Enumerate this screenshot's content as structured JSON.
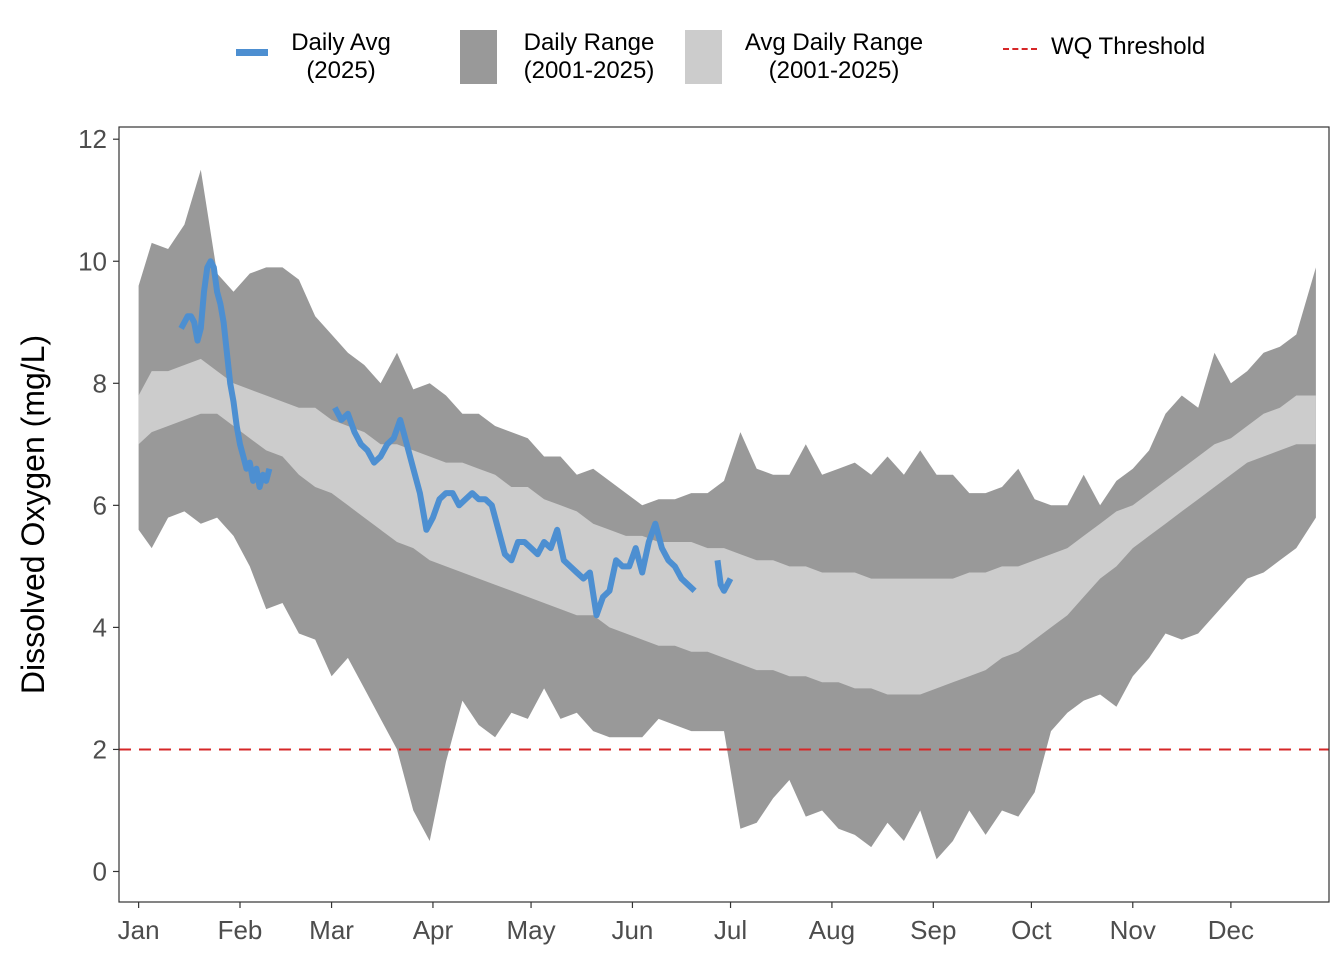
{
  "chart_data": {
    "type": "area",
    "title": "",
    "xlabel": "",
    "ylabel": "Dissolved Oxygen (mg/L)",
    "ylim": [
      -0.5,
      12.2
    ],
    "yticks": [
      0,
      2,
      4,
      6,
      8,
      10,
      12
    ],
    "xlim": [
      -5,
      365
    ],
    "x_unit": "day of year",
    "month_ticks": [
      {
        "label": "Jan",
        "day": 1
      },
      {
        "label": "Feb",
        "day": 32
      },
      {
        "label": "Mar",
        "day": 60
      },
      {
        "label": "Apr",
        "day": 91
      },
      {
        "label": "May",
        "day": 121
      },
      {
        "label": "Jun",
        "day": 152
      },
      {
        "label": "Jul",
        "day": 182
      },
      {
        "label": "Aug",
        "day": 213
      },
      {
        "label": "Sep",
        "day": 244
      },
      {
        "label": "Oct",
        "day": 274
      },
      {
        "label": "Nov",
        "day": 305
      },
      {
        "label": "Dec",
        "day": 335
      }
    ],
    "threshold": {
      "name": "WQ Threshold",
      "value": 2,
      "color": "#d62728"
    },
    "legend": {
      "placement": "top",
      "items": [
        {
          "key": "avg",
          "label": "Daily Avg\n(2025)",
          "color": "#4d8fd1"
        },
        {
          "key": "range",
          "label": "Daily Range\n(2001-2025)",
          "color": "#999999"
        },
        {
          "key": "avgrange",
          "label": "Avg Daily Range\n(2001-2025)",
          "color": "#cccccc"
        },
        {
          "key": "threshold",
          "label": "WQ Threshold",
          "color": "#d62728"
        }
      ]
    },
    "series": [
      {
        "name": "Daily Range (2001-2025)",
        "kind": "band",
        "color": "#999999",
        "x": [
          1,
          5,
          10,
          15,
          20,
          25,
          30,
          35,
          40,
          45,
          50,
          55,
          60,
          65,
          70,
          75,
          80,
          85,
          90,
          95,
          100,
          105,
          110,
          115,
          120,
          125,
          130,
          135,
          140,
          145,
          150,
          155,
          160,
          165,
          170,
          175,
          180,
          185,
          190,
          195,
          200,
          205,
          210,
          215,
          220,
          225,
          230,
          235,
          240,
          245,
          250,
          255,
          260,
          265,
          270,
          275,
          280,
          285,
          290,
          295,
          300,
          305,
          310,
          315,
          320,
          325,
          330,
          335,
          340,
          345,
          350,
          355,
          361
        ],
        "low": [
          5.6,
          5.3,
          5.8,
          5.9,
          5.7,
          5.8,
          5.5,
          5.0,
          4.3,
          4.4,
          3.9,
          3.8,
          3.2,
          3.5,
          3.0,
          2.5,
          2.0,
          1.0,
          0.5,
          1.8,
          2.8,
          2.4,
          2.2,
          2.6,
          2.5,
          3.0,
          2.5,
          2.6,
          2.3,
          2.2,
          2.2,
          2.2,
          2.5,
          2.4,
          2.3,
          2.3,
          2.3,
          0.7,
          0.8,
          1.2,
          1.5,
          0.9,
          1.0,
          0.7,
          0.6,
          0.4,
          0.8,
          0.5,
          1.0,
          0.2,
          0.5,
          1.0,
          0.6,
          1.0,
          0.9,
          1.3,
          2.3,
          2.6,
          2.8,
          2.9,
          2.7,
          3.2,
          3.5,
          3.9,
          3.8,
          3.9,
          4.2,
          4.5,
          4.8,
          4.9,
          5.1,
          5.3,
          5.8
        ],
        "high": [
          9.6,
          10.3,
          10.2,
          10.6,
          11.5,
          9.8,
          9.5,
          9.8,
          9.9,
          9.9,
          9.7,
          9.1,
          8.8,
          8.5,
          8.3,
          8.0,
          8.5,
          7.9,
          8.0,
          7.8,
          7.5,
          7.5,
          7.3,
          7.2,
          7.1,
          6.8,
          6.8,
          6.5,
          6.6,
          6.4,
          6.2,
          6.0,
          6.1,
          6.1,
          6.2,
          6.2,
          6.4,
          7.2,
          6.6,
          6.5,
          6.5,
          7.0,
          6.5,
          6.6,
          6.7,
          6.5,
          6.8,
          6.5,
          6.9,
          6.5,
          6.5,
          6.2,
          6.2,
          6.3,
          6.6,
          6.1,
          6.0,
          6.0,
          6.5,
          6.0,
          6.4,
          6.6,
          6.9,
          7.5,
          7.8,
          7.6,
          8.5,
          8.0,
          8.2,
          8.5,
          8.6,
          8.8,
          9.9
        ]
      },
      {
        "name": "Avg Daily Range (2001-2025)",
        "kind": "band",
        "color": "#cccccc",
        "x": [
          1,
          5,
          10,
          15,
          20,
          25,
          30,
          35,
          40,
          45,
          50,
          55,
          60,
          65,
          70,
          75,
          80,
          85,
          90,
          95,
          100,
          105,
          110,
          115,
          120,
          125,
          130,
          135,
          140,
          145,
          150,
          155,
          160,
          165,
          170,
          175,
          180,
          185,
          190,
          195,
          200,
          205,
          210,
          215,
          220,
          225,
          230,
          235,
          240,
          245,
          250,
          255,
          260,
          265,
          270,
          275,
          280,
          285,
          290,
          295,
          300,
          305,
          310,
          315,
          320,
          325,
          330,
          335,
          340,
          345,
          350,
          355,
          361
        ],
        "low": [
          7.0,
          7.2,
          7.3,
          7.4,
          7.5,
          7.5,
          7.3,
          7.1,
          6.9,
          6.8,
          6.5,
          6.3,
          6.2,
          6.0,
          5.8,
          5.6,
          5.4,
          5.3,
          5.1,
          5.0,
          4.9,
          4.8,
          4.7,
          4.6,
          4.5,
          4.4,
          4.3,
          4.2,
          4.2,
          4.0,
          3.9,
          3.8,
          3.7,
          3.7,
          3.6,
          3.6,
          3.5,
          3.4,
          3.3,
          3.3,
          3.2,
          3.2,
          3.1,
          3.1,
          3.0,
          3.0,
          2.9,
          2.9,
          2.9,
          3.0,
          3.1,
          3.2,
          3.3,
          3.5,
          3.6,
          3.8,
          4.0,
          4.2,
          4.5,
          4.8,
          5.0,
          5.3,
          5.5,
          5.7,
          5.9,
          6.1,
          6.3,
          6.5,
          6.7,
          6.8,
          6.9,
          7.0,
          7.0
        ],
        "high": [
          7.8,
          8.2,
          8.2,
          8.3,
          8.4,
          8.2,
          8.0,
          7.9,
          7.8,
          7.7,
          7.6,
          7.6,
          7.4,
          7.3,
          7.2,
          7.0,
          7.0,
          6.9,
          6.8,
          6.7,
          6.7,
          6.6,
          6.5,
          6.3,
          6.3,
          6.1,
          6.0,
          5.9,
          5.7,
          5.6,
          5.5,
          5.5,
          5.4,
          5.4,
          5.4,
          5.3,
          5.3,
          5.2,
          5.1,
          5.1,
          5.0,
          5.0,
          4.9,
          4.9,
          4.9,
          4.8,
          4.8,
          4.8,
          4.8,
          4.8,
          4.8,
          4.9,
          4.9,
          5.0,
          5.0,
          5.1,
          5.2,
          5.3,
          5.5,
          5.7,
          5.9,
          6.0,
          6.2,
          6.4,
          6.6,
          6.8,
          7.0,
          7.1,
          7.3,
          7.5,
          7.6,
          7.8,
          7.8
        ]
      },
      {
        "name": "Daily Avg (2025)",
        "kind": "line",
        "color": "#4d8fd1",
        "segments": [
          {
            "x": [
              14,
              16,
              17,
              18,
              19,
              20,
              21,
              22,
              23,
              24,
              25,
              26,
              27,
              28,
              29,
              30,
              31,
              32,
              33,
              34,
              35,
              36,
              37,
              38,
              39,
              40,
              41
            ],
            "y": [
              8.9,
              9.1,
              9.1,
              9.0,
              8.7,
              8.9,
              9.5,
              9.9,
              10.0,
              9.9,
              9.5,
              9.3,
              9.0,
              8.5,
              8.0,
              7.7,
              7.3,
              7.0,
              6.8,
              6.6,
              6.7,
              6.4,
              6.6,
              6.3,
              6.5,
              6.4,
              6.6
            ]
          },
          {
            "x": [
              61,
              63,
              65,
              67,
              69,
              71,
              73,
              75,
              77,
              79,
              81,
              83,
              85,
              87,
              89,
              91,
              93,
              95,
              97,
              99,
              101,
              103,
              105,
              107,
              109,
              111,
              113,
              115,
              117,
              119,
              121,
              123,
              125,
              127,
              129,
              131,
              133,
              135,
              137,
              139,
              141,
              143,
              145,
              147,
              149,
              151,
              153,
              155,
              157,
              159,
              161,
              163,
              165,
              167,
              169,
              171
            ],
            "y": [
              7.6,
              7.4,
              7.5,
              7.2,
              7.0,
              6.9,
              6.7,
              6.8,
              7.0,
              7.1,
              7.4,
              7.0,
              6.6,
              6.2,
              5.6,
              5.8,
              6.1,
              6.2,
              6.2,
              6.0,
              6.1,
              6.2,
              6.1,
              6.1,
              6.0,
              5.6,
              5.2,
              5.1,
              5.4,
              5.4,
              5.3,
              5.2,
              5.4,
              5.3,
              5.6,
              5.1,
              5.0,
              4.9,
              4.8,
              4.9,
              4.2,
              4.5,
              4.6,
              5.1,
              5.0,
              5.0,
              5.3,
              4.9,
              5.4,
              5.7,
              5.3,
              5.1,
              5.0,
              4.8,
              4.7,
              4.6
            ]
          },
          {
            "x": [
              178,
              179,
              180,
              181,
              182
            ],
            "y": [
              5.1,
              4.7,
              4.6,
              4.7,
              4.8
            ]
          }
        ]
      }
    ]
  }
}
